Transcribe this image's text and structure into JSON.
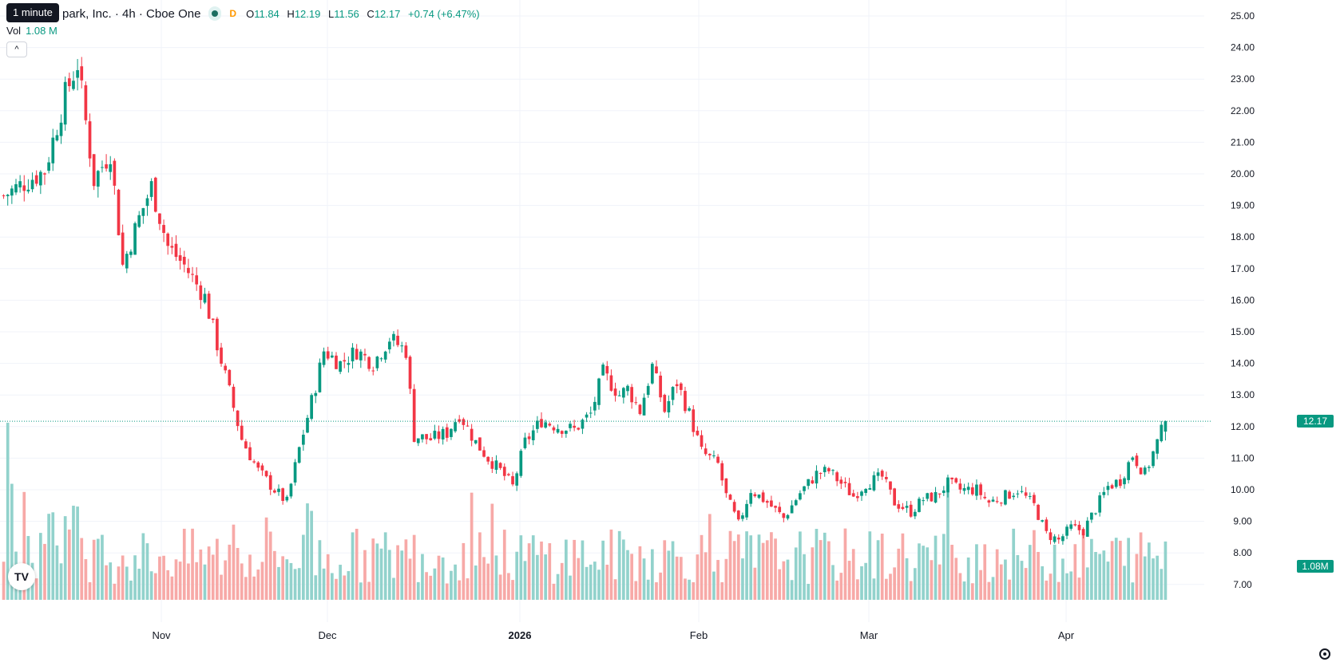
{
  "header": {
    "tooltip": "1 minute",
    "title": "park, Inc. · 4h · Cboe One",
    "market_status_badge": "D",
    "ohlc": {
      "o_label": "O",
      "o": "11.84",
      "h_label": "H",
      "h": "12.19",
      "l_label": "L",
      "l": "11.56",
      "c_label": "C",
      "c": "12.17",
      "change": "+0.74 (+6.47%)"
    },
    "volume_label": "Vol",
    "volume_value": "1.08 M",
    "collapse_icon": "chevron-up-icon"
  },
  "price_axis": {
    "ticks": [
      "25.00",
      "24.00",
      "23.00",
      "22.00",
      "21.00",
      "20.00",
      "19.00",
      "18.00",
      "17.00",
      "16.00",
      "15.00",
      "14.00",
      "13.00",
      "12.00",
      "11.00",
      "10.00",
      "9.00",
      "8.00",
      "7.00"
    ],
    "last_price": "12.17",
    "last_volume": "1.08M"
  },
  "time_axis": {
    "labels": [
      "Nov",
      "Dec",
      "2026",
      "Feb",
      "Mar",
      "Apr"
    ]
  },
  "colors": {
    "up": "#089981",
    "down": "#f23645",
    "up_volume": "#92d2cc",
    "down_volume": "#f7a9a7",
    "grid": "#f0f3fa"
  },
  "logo": "TV",
  "chart_data": {
    "type": "candlestick",
    "interval": "4h",
    "ylim": [
      6.5,
      25.4
    ],
    "last_close": 12.17,
    "x_labels": [
      "Nov",
      "Dec",
      "2026",
      "Feb",
      "Mar",
      "Apr"
    ],
    "close_path": [
      [
        0,
        19.3
      ],
      [
        6,
        19.8
      ],
      [
        10,
        20.1
      ],
      [
        15,
        22.5
      ],
      [
        18,
        23.5
      ],
      [
        22,
        19.8
      ],
      [
        26,
        20.7
      ],
      [
        29,
        17.1
      ],
      [
        33,
        18.6
      ],
      [
        36,
        19.6
      ],
      [
        40,
        17.7
      ],
      [
        44,
        17.1
      ],
      [
        49,
        16.1
      ],
      [
        53,
        14.1
      ],
      [
        58,
        11.6
      ],
      [
        62,
        10.6
      ],
      [
        66,
        10.0
      ],
      [
        69,
        9.6
      ],
      [
        72,
        11.3
      ],
      [
        76,
        13.3
      ],
      [
        78,
        14.4
      ],
      [
        82,
        14.0
      ],
      [
        86,
        14.4
      ],
      [
        90,
        14.0
      ],
      [
        94,
        14.8
      ],
      [
        98,
        14.4
      ],
      [
        100,
        11.7
      ],
      [
        104,
        11.6
      ],
      [
        108,
        11.8
      ],
      [
        111,
        12.4
      ],
      [
        115,
        11.5
      ],
      [
        118,
        11.0
      ],
      [
        121,
        10.6
      ],
      [
        124,
        10.1
      ],
      [
        127,
        11.5
      ],
      [
        131,
        12.2
      ],
      [
        135,
        12.0
      ],
      [
        139,
        11.9
      ],
      [
        143,
        12.4
      ],
      [
        146,
        13.7
      ],
      [
        150,
        13.0
      ],
      [
        152,
        13.2
      ],
      [
        155,
        12.5
      ],
      [
        158,
        13.9
      ],
      [
        161,
        12.5
      ],
      [
        164,
        13.4
      ],
      [
        167,
        12.4
      ],
      [
        170,
        11.2
      ],
      [
        174,
        10.8
      ],
      [
        176,
        9.8
      ],
      [
        179,
        8.9
      ],
      [
        182,
        10.0
      ],
      [
        186,
        9.6
      ],
      [
        190,
        9.1
      ],
      [
        194,
        9.9
      ],
      [
        198,
        10.5
      ],
      [
        201,
        10.6
      ],
      [
        204,
        10.2
      ],
      [
        207,
        9.8
      ],
      [
        210,
        10.2
      ],
      [
        214,
        10.4
      ],
      [
        217,
        9.6
      ],
      [
        221,
        9.3
      ],
      [
        224,
        9.7
      ],
      [
        227,
        9.8
      ],
      [
        230,
        10.2
      ],
      [
        233,
        10.0
      ],
      [
        237,
        10.0
      ],
      [
        240,
        9.6
      ],
      [
        244,
        9.8
      ],
      [
        247,
        10.0
      ],
      [
        251,
        9.5
      ],
      [
        254,
        8.6
      ],
      [
        257,
        8.4
      ],
      [
        260,
        8.8
      ],
      [
        263,
        8.7
      ],
      [
        266,
        9.4
      ],
      [
        269,
        10.1
      ],
      [
        272,
        10.3
      ],
      [
        275,
        11.1
      ],
      [
        278,
        10.5
      ],
      [
        281,
        11.5
      ],
      [
        283,
        12.17
      ]
    ]
  }
}
